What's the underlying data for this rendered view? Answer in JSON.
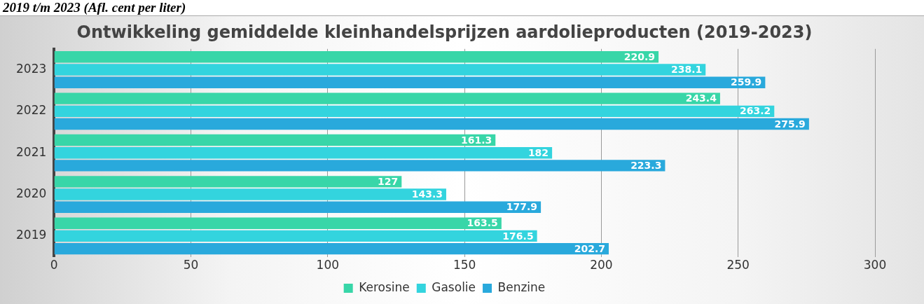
{
  "chart_data": {
    "type": "bar",
    "orientation": "horizontal",
    "title": "Ontwikkeling gemiddelde kleinhandelsprijzen aardolieproducten (2019-2023)",
    "annotations": [
      "2019 t/m 2023 (Afl. cent per liter)"
    ],
    "categories": [
      "2023",
      "2022",
      "2021",
      "2020",
      "2019"
    ],
    "series": [
      {
        "name": "Kerosine",
        "color": "#38d6a8",
        "values": [
          220.9,
          243.4,
          161.3,
          127,
          163.5
        ]
      },
      {
        "name": "Gasolie",
        "color": "#33d4de",
        "values": [
          238.1,
          263.2,
          182,
          143.3,
          176.5
        ]
      },
      {
        "name": "Benzine",
        "color": "#29a9dc",
        "values": [
          259.9,
          275.9,
          223.3,
          177.9,
          202.7
        ]
      }
    ],
    "xlim": [
      0,
      300
    ],
    "xticks": [
      0,
      50,
      100,
      150,
      200,
      250,
      300
    ],
    "grid": "x",
    "legend": "bottom",
    "data_labels": true
  }
}
